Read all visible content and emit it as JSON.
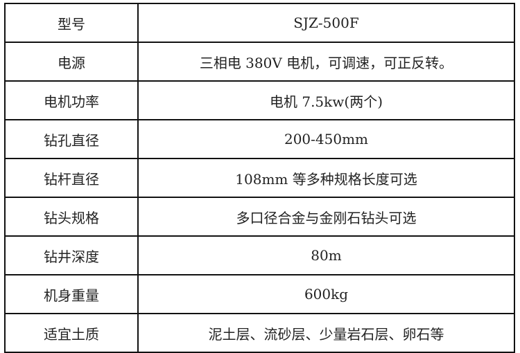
{
  "rows": [
    {
      "label": "型号",
      "value": "SJZ-500F"
    },
    {
      "label": "电源",
      "value": "三相电 380V 电机，可调速，可正反转。"
    },
    {
      "label": "电机功率",
      "value": "电机 7.5kw(两个)"
    },
    {
      "label": "钻孔直径",
      "value": "200-450mm"
    },
    {
      "label": "钻杆直径",
      "value": "108mm 等多种规格长度可选"
    },
    {
      "label": "钻头规格",
      "value": "多口径合金与金刚石钻头可选"
    },
    {
      "label": "钻井深度",
      "value": "80m"
    },
    {
      "label": "机身重量",
      "value": "600kg"
    },
    {
      "label": "适宜土质",
      "value": "泥土层、流砂层、少量岩石层、卵石等"
    }
  ]
}
